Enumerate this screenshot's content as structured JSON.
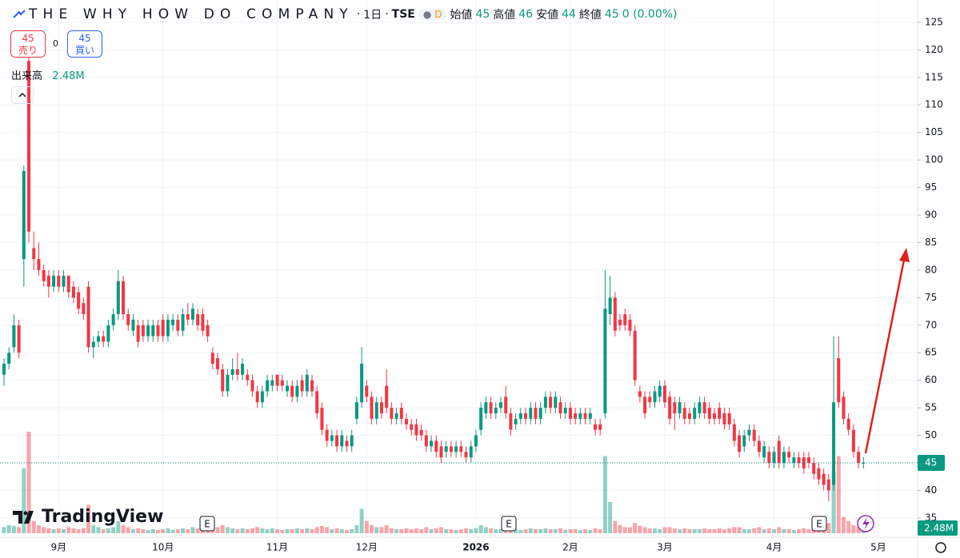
{
  "header": {
    "name": "THE WHY HOW DO COMPANY",
    "interval": "1日",
    "exchange": "TSE",
    "badge": "D",
    "sell": {
      "price": 45,
      "label": "売り"
    },
    "spread": 0,
    "buy": {
      "price": 45,
      "label": "買い"
    }
  },
  "branding": "TradingView",
  "chart_data": {
    "type": "candlestick",
    "legend": {
      "open": {
        "label": "始値",
        "value": 45
      },
      "high": {
        "label": "高値",
        "value": 46
      },
      "low": {
        "label": "安値",
        "value": 44
      },
      "close": {
        "label": "終値",
        "value": 45
      },
      "change": "0 (0.00%)"
    },
    "volume_title": "出来高",
    "current_volume": {
      "value": 2.48,
      "label": "2.48M"
    },
    "last_price": 45,
    "earnings_markers": [
      "E",
      "E",
      "E"
    ],
    "up_color": "#089981",
    "down_color": "#f23645",
    "grid": true,
    "ylim": [
      31.5,
      127.6
    ],
    "yticks": [
      35,
      40,
      45,
      50,
      55,
      60,
      65,
      70,
      75,
      80,
      85,
      90,
      95,
      100,
      105,
      110,
      115,
      120,
      125
    ],
    "categories": [
      null,
      null,
      null,
      null,
      null,
      null,
      null,
      null,
      null,
      null,
      null,
      "9月",
      null,
      null,
      null,
      null,
      null,
      null,
      null,
      null,
      null,
      null,
      null,
      null,
      null,
      null,
      null,
      null,
      null,
      null,
      null,
      null,
      "10月",
      null,
      null,
      null,
      null,
      null,
      null,
      null,
      null,
      null,
      null,
      null,
      null,
      null,
      null,
      null,
      null,
      null,
      null,
      null,
      null,
      null,
      null,
      "11月",
      null,
      null,
      null,
      null,
      null,
      null,
      null,
      null,
      null,
      null,
      null,
      null,
      null,
      null,
      null,
      null,
      null,
      "12月",
      null,
      null,
      null,
      null,
      null,
      null,
      null,
      null,
      null,
      null,
      null,
      null,
      null,
      null,
      null,
      null,
      null,
      null,
      null,
      null,
      null,
      "2026",
      null,
      null,
      null,
      null,
      null,
      null,
      null,
      null,
      null,
      null,
      null,
      null,
      null,
      null,
      null,
      null,
      null,
      null,
      "2月",
      null,
      null,
      null,
      null,
      null,
      null,
      null,
      null,
      null,
      null,
      null,
      null,
      null,
      null,
      null,
      null,
      null,
      null,
      "3月",
      null,
      null,
      null,
      null,
      null,
      null,
      null,
      null,
      null,
      null,
      null,
      null,
      null,
      null,
      null,
      null,
      null,
      null,
      null,
      null,
      null,
      "4月",
      null,
      null,
      null,
      null,
      null,
      null,
      null,
      null,
      null,
      null,
      null,
      null,
      null,
      null,
      null,
      null,
      null,
      null,
      null,
      null,
      "5月"
    ],
    "ohlc": [
      [
        61,
        64,
        59,
        63
      ],
      [
        63,
        66,
        62,
        65
      ],
      [
        66,
        72,
        65,
        70
      ],
      [
        70,
        71,
        64,
        65
      ],
      [
        82,
        99,
        77,
        98
      ],
      [
        118,
        123,
        85,
        87
      ],
      [
        84,
        87,
        80,
        82
      ],
      [
        82,
        85,
        79,
        80
      ],
      [
        80,
        81,
        77,
        78
      ],
      [
        79,
        80,
        75,
        77
      ],
      [
        77,
        80,
        76,
        79
      ],
      [
        79,
        80,
        76,
        77
      ],
      [
        77,
        80,
        76,
        79
      ],
      [
        79,
        79,
        75,
        76
      ],
      [
        77,
        78,
        74,
        75
      ],
      [
        76,
        77,
        72,
        73
      ],
      [
        74,
        75,
        71,
        72
      ],
      [
        77,
        78,
        65,
        66
      ],
      [
        66,
        68,
        64,
        67
      ],
      [
        67,
        69,
        66,
        68
      ],
      [
        68,
        69,
        66,
        67
      ],
      [
        67,
        71,
        66,
        70
      ],
      [
        70,
        73,
        69,
        72
      ],
      [
        72,
        80,
        71,
        78
      ],
      [
        78,
        79,
        71,
        72
      ],
      [
        72,
        73,
        69,
        70
      ],
      [
        69,
        72,
        68,
        71
      ],
      [
        70,
        71,
        66,
        67
      ],
      [
        70,
        71,
        67,
        68
      ],
      [
        68,
        71,
        67,
        70
      ],
      [
        68,
        71,
        67,
        70
      ],
      [
        70,
        71,
        67,
        68
      ],
      [
        71,
        72,
        67,
        68
      ],
      [
        68,
        72,
        67,
        71
      ],
      [
        70,
        72,
        69,
        71
      ],
      [
        71,
        72,
        68,
        69
      ],
      [
        69,
        73,
        68,
        72
      ],
      [
        72,
        74,
        70,
        71
      ],
      [
        71,
        74,
        70,
        73
      ],
      [
        72,
        73,
        69,
        70
      ],
      [
        72,
        73,
        68,
        69
      ],
      [
        70,
        71,
        67,
        68
      ],
      [
        65,
        66,
        62,
        63
      ],
      [
        64,
        65,
        61,
        62
      ],
      [
        62,
        63,
        57,
        58
      ],
      [
        58,
        62,
        57,
        61
      ],
      [
        61,
        64,
        60,
        62
      ],
      [
        62,
        65,
        60,
        61
      ],
      [
        61,
        64,
        60,
        63
      ],
      [
        61,
        62,
        59,
        60
      ],
      [
        60,
        61,
        57,
        58
      ],
      [
        58,
        59,
        55,
        56
      ],
      [
        56,
        59,
        55,
        58
      ],
      [
        58,
        61,
        57,
        60
      ],
      [
        59,
        61,
        58,
        60
      ],
      [
        61,
        61,
        58,
        59
      ],
      [
        60,
        61,
        58,
        59
      ],
      [
        58,
        60,
        57,
        59
      ],
      [
        59,
        60,
        56,
        57
      ],
      [
        57,
        60,
        56,
        59
      ],
      [
        60,
        61,
        57,
        58
      ],
      [
        58,
        62,
        57,
        61
      ],
      [
        60,
        61,
        57,
        58
      ],
      [
        58,
        59,
        53,
        54
      ],
      [
        55,
        56,
        50,
        51
      ],
      [
        51,
        52,
        48,
        49
      ],
      [
        49,
        51,
        48,
        50
      ],
      [
        50,
        51,
        47,
        48
      ],
      [
        48,
        51,
        47,
        50
      ],
      [
        49,
        50,
        47,
        48
      ],
      [
        48,
        51,
        47,
        50
      ],
      [
        53,
        57,
        52,
        56
      ],
      [
        56,
        66,
        55,
        63
      ],
      [
        59,
        60,
        56,
        57
      ],
      [
        57,
        58,
        52,
        53
      ],
      [
        53,
        57,
        52,
        56
      ],
      [
        56,
        57,
        53,
        54
      ],
      [
        59,
        62,
        54,
        55
      ],
      [
        55,
        56,
        52,
        53
      ],
      [
        53,
        55,
        52,
        54
      ],
      [
        55,
        56,
        52,
        53
      ],
      [
        53,
        54,
        51,
        52
      ],
      [
        52,
        53,
        50,
        51
      ],
      [
        52,
        53,
        49,
        50
      ],
      [
        51,
        52,
        49,
        50
      ],
      [
        50,
        51,
        47,
        48
      ],
      [
        48,
        50,
        47,
        49
      ],
      [
        49,
        50,
        46,
        47
      ],
      [
        48,
        49,
        45,
        46
      ],
      [
        47,
        49,
        46,
        48
      ],
      [
        48,
        49,
        46,
        47
      ],
      [
        47,
        49,
        46,
        48
      ],
      [
        48,
        49,
        46,
        47
      ],
      [
        47,
        48,
        45,
        46
      ],
      [
        46,
        49,
        45,
        48
      ],
      [
        48,
        51,
        47,
        50
      ],
      [
        51,
        56,
        50,
        55
      ],
      [
        54,
        57,
        53,
        56
      ],
      [
        56,
        57,
        53,
        54
      ],
      [
        54,
        56,
        53,
        55
      ],
      [
        55,
        57,
        54,
        56
      ],
      [
        57,
        59,
        53,
        54
      ],
      [
        54,
        55,
        50,
        51
      ],
      [
        52,
        54,
        51,
        53
      ],
      [
        53,
        55,
        52,
        54
      ],
      [
        54,
        55,
        52,
        53
      ],
      [
        53,
        56,
        52,
        55
      ],
      [
        55,
        56,
        52,
        53
      ],
      [
        53,
        56,
        52,
        55
      ],
      [
        55,
        58,
        54,
        57
      ],
      [
        57,
        58,
        54,
        55
      ],
      [
        55,
        58,
        54,
        57
      ],
      [
        56,
        57,
        53,
        54
      ],
      [
        54,
        56,
        53,
        55
      ],
      [
        55,
        56,
        52,
        53
      ],
      [
        54,
        55,
        52,
        53
      ],
      [
        53,
        55,
        52,
        54
      ],
      [
        54,
        55,
        52,
        53
      ],
      [
        53,
        55,
        52,
        54
      ],
      [
        52,
        53,
        50,
        51
      ],
      [
        52,
        53,
        50,
        51
      ],
      [
        54,
        80,
        53,
        73
      ],
      [
        72,
        79,
        70,
        75
      ],
      [
        75,
        76,
        68,
        69
      ],
      [
        71,
        72,
        69,
        70
      ],
      [
        72,
        73,
        69,
        70
      ],
      [
        71,
        72,
        68,
        69
      ],
      [
        69,
        70,
        59,
        60
      ],
      [
        58,
        59,
        56,
        57
      ],
      [
        57,
        58,
        53,
        54
      ],
      [
        57,
        58,
        55,
        56
      ],
      [
        56,
        59,
        55,
        58
      ],
      [
        57,
        60,
        56,
        59
      ],
      [
        59,
        60,
        55,
        56
      ],
      [
        57,
        58,
        52,
        53
      ],
      [
        56,
        57,
        51,
        54
      ],
      [
        54,
        57,
        53,
        56
      ],
      [
        55,
        56,
        52,
        53
      ],
      [
        54,
        55,
        52,
        53
      ],
      [
        53,
        56,
        52,
        55
      ],
      [
        54,
        57,
        53,
        56
      ],
      [
        56,
        57,
        53,
        54
      ],
      [
        55,
        56,
        52,
        53
      ],
      [
        54,
        55,
        52,
        53
      ],
      [
        55,
        56,
        52,
        53
      ],
      [
        54,
        55,
        51,
        52
      ],
      [
        54,
        55,
        51,
        52
      ],
      [
        52,
        53,
        48,
        49
      ],
      [
        50,
        51,
        46,
        47
      ],
      [
        48,
        51,
        47,
        50
      ],
      [
        50,
        52,
        49,
        51
      ],
      [
        51,
        52,
        48,
        49
      ],
      [
        49,
        50,
        46,
        47
      ],
      [
        46,
        49,
        45,
        48
      ],
      [
        47,
        48,
        44,
        45
      ],
      [
        45,
        48,
        44,
        47
      ],
      [
        49,
        50,
        44,
        45
      ],
      [
        45,
        48,
        44,
        47
      ],
      [
        47,
        48,
        45,
        46
      ],
      [
        45,
        47,
        44,
        46
      ],
      [
        46,
        47,
        44,
        45
      ],
      [
        46,
        47,
        43,
        44
      ],
      [
        46,
        47,
        44,
        45
      ],
      [
        45,
        46,
        42,
        43
      ],
      [
        44,
        45,
        41,
        42
      ],
      [
        43,
        44,
        40,
        41
      ],
      [
        42,
        43,
        38,
        40
      ],
      [
        41,
        68,
        40,
        56
      ],
      [
        64,
        68,
        55,
        56
      ],
      [
        57,
        58,
        52,
        53
      ],
      [
        53,
        54,
        50,
        51
      ],
      [
        51,
        52,
        46,
        47
      ],
      [
        47,
        48,
        44,
        45
      ],
      [
        45,
        46,
        44,
        45
      ],
      null,
      null,
      null
    ],
    "volume": [
      1.5,
      2,
      1.8,
      1.5,
      16,
      25,
      3,
      2,
      1.5,
      1.2,
      1,
      1.2,
      1,
      1.5,
      1.2,
      1,
      1.3,
      7,
      2,
      1.5,
      1,
      1.2,
      1.5,
      3,
      2,
      1.5,
      1,
      1.2,
      1,
      0.8,
      1,
      0.8,
      1,
      1.2,
      0.8,
      1,
      1.2,
      1,
      1.5,
      1.2,
      1,
      1.5,
      2,
      1.5,
      2,
      1.5,
      1.2,
      1,
      1.2,
      1,
      1.2,
      1.5,
      1.2,
      1,
      1.2,
      1,
      0.8,
      1,
      1,
      1.2,
      1,
      1.2,
      1,
      1.5,
      1.8,
      1.5,
      1,
      1.2,
      1,
      0.8,
      1,
      2,
      6,
      3,
      2,
      1.5,
      1.5,
      2,
      1.2,
      1,
      1,
      1.2,
      1,
      1.2,
      1,
      1.5,
      1,
      1.2,
      1.5,
      1,
      1,
      0.8,
      1,
      1.2,
      1,
      1.2,
      2,
      1.5,
      1.2,
      1,
      1,
      1.5,
      1.5,
      1,
      0.8,
      1,
      1.2,
      1,
      1,
      1.2,
      1,
      1,
      1.2,
      0.8,
      1,
      1,
      0.8,
      1,
      0.8,
      1.2,
      1,
      19,
      7.7,
      3,
      2,
      1.5,
      1.5,
      2.5,
      1.8,
      1.5,
      1.2,
      1.2,
      1,
      1.5,
      1.5,
      1.2,
      1,
      1.2,
      1,
      1,
      1,
      1.2,
      1,
      1,
      1.2,
      1,
      1.2,
      1.5,
      1.5,
      1,
      1,
      1.2,
      1.5,
      1,
      1.2,
      1,
      1.5,
      1,
      1,
      0.8,
      1,
      1.2,
      1,
      1.5,
      1.5,
      2,
      2.5,
      15,
      19,
      4,
      3,
      2,
      1.5,
      2.48,
      null,
      null,
      null
    ]
  }
}
